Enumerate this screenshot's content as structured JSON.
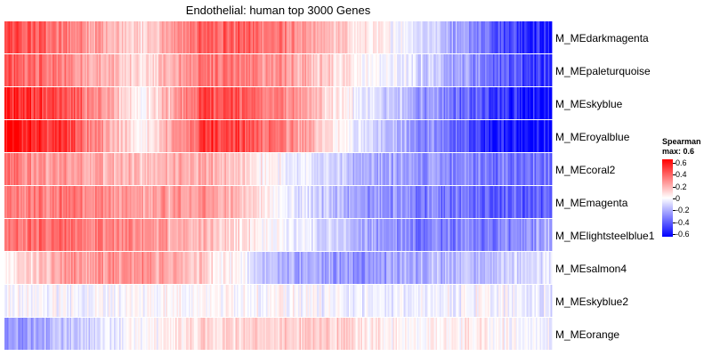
{
  "chart_data": {
    "type": "heatmap",
    "title": "Endothelial: human top 3000 Genes",
    "rows": [
      "M_MEdarkmagenta",
      "M_MEpaleturquoise",
      "M_MEskyblue",
      "M_MEroyalblue",
      "M_MEcoral2",
      "M_MEmagenta",
      "M_MElightsteelblue1",
      "M_MEsalmon4",
      "M_MEskyblue2",
      "M_MEorange"
    ],
    "n_columns": 3000,
    "row_profiles": [
      [
        0.42,
        0.3,
        0.08,
        0.4,
        0.3,
        0.1,
        -0.05,
        -0.3,
        -0.55
      ],
      [
        0.38,
        0.28,
        0.05,
        0.35,
        0.25,
        0.05,
        -0.08,
        -0.28,
        -0.5
      ],
      [
        0.52,
        0.4,
        0.0,
        0.45,
        0.3,
        0.02,
        -0.2,
        -0.4,
        -0.6
      ],
      [
        0.58,
        0.42,
        0.0,
        0.48,
        0.32,
        0.0,
        -0.25,
        -0.45,
        -0.6
      ],
      [
        0.3,
        0.22,
        0.15,
        0.2,
        0.0,
        -0.15,
        -0.25,
        -0.3,
        -0.35
      ],
      [
        0.28,
        0.32,
        0.2,
        0.25,
        0.0,
        -0.2,
        -0.3,
        -0.35,
        -0.35
      ],
      [
        0.3,
        0.35,
        0.25,
        0.15,
        0.0,
        -0.15,
        -0.3,
        -0.3,
        -0.2
      ],
      [
        0.02,
        0.25,
        0.25,
        0.1,
        -0.18,
        -0.25,
        -0.2,
        -0.15,
        -0.05
      ],
      [
        0.0,
        -0.02,
        0.0,
        0.02,
        0.0,
        -0.03,
        -0.05,
        0.0,
        -0.05
      ],
      [
        -0.28,
        -0.12,
        0.0,
        0.1,
        0.12,
        0.1,
        0.0,
        0.05,
        -0.05
      ]
    ],
    "color_scale": {
      "min": -0.6,
      "mid": 0,
      "max": 0.6,
      "low": "#0000ff",
      "mid_color": "#ffffff",
      "high": "#ff0000"
    },
    "legend": {
      "title": "Spearman",
      "subtitle": "max: 0.6",
      "ticks": [
        "0.6",
        "0.4",
        "0.2",
        "0",
        "-0.2",
        "-0.4",
        "-0.6"
      ],
      "placement": "right"
    }
  }
}
